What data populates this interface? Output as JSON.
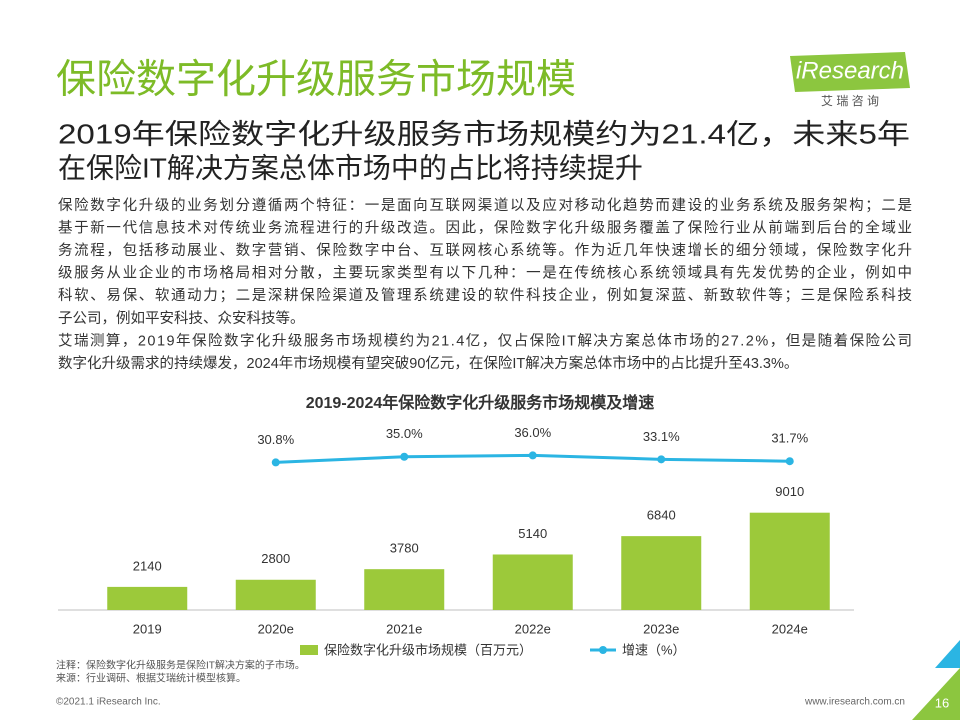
{
  "logo": {
    "name": "iResearch",
    "sub": "艾 瑞 咨 询"
  },
  "title": "保险数字化升级服务市场规模",
  "subtitle": [
    "2019年保险数字化升级服务市场规模约为21.4亿，未来5年",
    "在保险IT解决方案总体市场中的占比将持续提升"
  ],
  "body": [
    "保险数字化升级的业务划分遵循两个特征：一是面向互联网渠道以及应对移动化趋势而建设的业务系统及服务架构；二是",
    "基于新一代信息技术对传统业务流程进行的升级改造。因此，保险数字化升级服务覆盖了保险行业从前端到后台的全域业",
    "务流程，包括移动展业、数字营销、保险数字中台、互联网核心系统等。作为近几年快速增长的细分领域，保险数字化升",
    "级服务从业企业的市场格局相对分散，主要玩家类型有以下几种：一是在传统核心系统领域具有先发优势的企业，例如中",
    "科软、易保、软通动力；二是深耕保险渠道及管理系统建设的软件科技企业，例如复深蓝、新致软件等；三是保险系科技",
    "子公司，例如平安科技、众安科技等。",
    "艾瑞测算，2019年保险数字化升级服务市场规模约为21.4亿，仅占保险IT解决方案总体市场的27.2%，但是随着保险公司",
    "数字化升级需求的持续爆发，2024年市场规模有望突破90亿元，在保险IT解决方案总体市场中的占比提升至43.3%。"
  ],
  "chart_data": {
    "type": "bar-line",
    "title": "2019-2024年保险数字化升级服务市场规模及增速",
    "categories": [
      "2019",
      "2020e",
      "2021e",
      "2022e",
      "2023e",
      "2024e"
    ],
    "ylim": [
      0,
      10000
    ],
    "y2lim": [
      0,
      100
    ],
    "series": [
      {
        "name": "保险数字化升级市场规模（百万元）",
        "type": "bar",
        "color": "#9cc93a",
        "values": [
          2140,
          2800,
          3780,
          5140,
          6840,
          9010
        ]
      },
      {
        "name": "增速（%）",
        "type": "line",
        "axis": "y2",
        "color": "#2bb5e3",
        "values": [
          null,
          30.8,
          35.0,
          36.0,
          33.1,
          31.7
        ],
        "value_labels": [
          null,
          "30.8%",
          "35.0%",
          "36.0%",
          "33.1%",
          "31.7%"
        ]
      }
    ]
  },
  "notes": [
    "注释：保险数字化升级服务是保险IT解决方案的子市场。",
    "来源：行业调研、根据艾瑞统计模型核算。"
  ],
  "footer": {
    "copyright": "©2021.1 iResearch Inc.",
    "url": "www.iresearch.com.cn",
    "page": "16"
  }
}
